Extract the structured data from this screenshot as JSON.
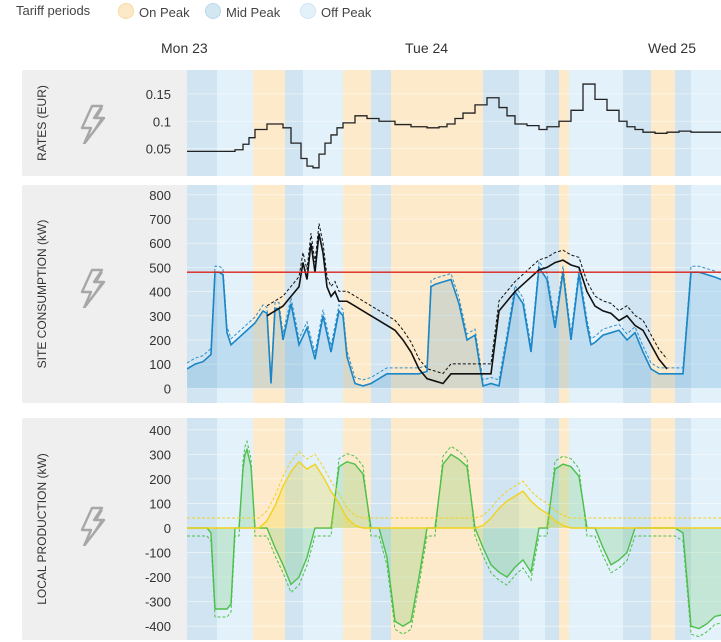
{
  "legend": {
    "title": "Tariff periods",
    "items": [
      {
        "label": "On Peak",
        "color": "#fde9c7"
      },
      {
        "label": "Mid Peak",
        "color": "#d3e7f3"
      },
      {
        "label": "Off Peak",
        "color": "#e3f1fb"
      }
    ]
  },
  "days": [
    "Mon 23",
    "Tue 24",
    "Wed 25"
  ],
  "colors": {
    "on_peak": "#fde9c7",
    "mid_peak": "#cfe3f0",
    "off_peak": "#e1f0fa",
    "rate_line": "#222222",
    "consumption_blue": "#1a86c7",
    "consumption_black": "#111111",
    "threshold": "#d9221c",
    "production_yellow": "#f2d21b",
    "production_green": "#4cc04a"
  },
  "icons": {
    "panel_icon": "bolt-icon"
  },
  "chart_data": [
    {
      "type": "line",
      "ylabel": "RATES (EUR)",
      "yticks": [
        0.05,
        0.1,
        0.15
      ],
      "ylim": [
        0.0,
        0.19
      ],
      "tariff_periods": [
        {
          "period": "Mid Peak",
          "start": 0.0,
          "end": 0.075
        },
        {
          "period": "Off Peak",
          "start": 0.075,
          "end": 0.165
        },
        {
          "period": "On Peak",
          "start": 0.165,
          "end": 0.245
        },
        {
          "period": "Mid Peak",
          "start": 0.245,
          "end": 0.29
        },
        {
          "period": "Off Peak",
          "start": 0.29,
          "end": 0.39
        },
        {
          "period": "On Peak",
          "start": 0.39,
          "end": 0.46
        },
        {
          "period": "Mid Peak",
          "start": 0.46,
          "end": 0.51
        },
        {
          "period": "On Peak",
          "start": 0.51,
          "end": 0.74
        },
        {
          "period": "Mid Peak",
          "start": 0.74,
          "end": 0.83
        },
        {
          "period": "Off Peak",
          "start": 0.83,
          "end": 0.895
        },
        {
          "period": "Mid Peak",
          "start": 0.895,
          "end": 0.93
        },
        {
          "period": "On Peak",
          "start": 0.93,
          "end": 0.955
        },
        {
          "period": "Off Peak",
          "start": 0.955,
          "end": 1.09
        },
        {
          "period": "Mid Peak",
          "start": 1.09,
          "end": 1.16
        },
        {
          "period": "On Peak",
          "start": 1.16,
          "end": 1.22
        },
        {
          "period": "Mid Peak",
          "start": 1.22,
          "end": 1.26
        },
        {
          "period": "Off Peak",
          "start": 1.26,
          "end": 1.35
        }
      ],
      "rates": {
        "x": [
          0.0,
          0.12,
          0.14,
          0.155,
          0.17,
          0.2,
          0.24,
          0.26,
          0.285,
          0.3,
          0.315,
          0.33,
          0.345,
          0.36,
          0.375,
          0.39,
          0.42,
          0.45,
          0.48,
          0.52,
          0.56,
          0.6,
          0.63,
          0.65,
          0.67,
          0.69,
          0.72,
          0.75,
          0.78,
          0.8,
          0.82,
          0.85,
          0.88,
          0.9,
          0.93,
          0.96,
          0.99,
          1.02,
          1.05,
          1.08,
          1.1,
          1.12,
          1.14,
          1.17,
          1.2,
          1.23,
          1.26,
          1.3,
          1.35
        ],
        "y": [
          0.045,
          0.048,
          0.058,
          0.07,
          0.085,
          0.095,
          0.088,
          0.06,
          0.032,
          0.018,
          0.015,
          0.04,
          0.06,
          0.075,
          0.088,
          0.097,
          0.11,
          0.105,
          0.1,
          0.094,
          0.09,
          0.088,
          0.09,
          0.095,
          0.105,
          0.115,
          0.13,
          0.143,
          0.125,
          0.11,
          0.095,
          0.092,
          0.085,
          0.09,
          0.1,
          0.12,
          0.168,
          0.14,
          0.12,
          0.1,
          0.09,
          0.085,
          0.08,
          0.078,
          0.08,
          0.082,
          0.08,
          0.08,
          0.08
        ]
      }
    },
    {
      "type": "area",
      "ylabel": "SITE CONSUMPTION (kW)",
      "yticks": [
        0,
        100,
        200,
        300,
        400,
        500,
        600,
        700,
        800
      ],
      "ylim": [
        -40,
        820
      ],
      "threshold": 480,
      "series": [
        {
          "x": [
            0.0,
            0.02,
            0.04,
            0.06,
            0.07,
            0.08,
            0.09,
            0.1,
            0.11,
            0.13,
            0.15,
            0.17,
            0.19,
            0.2,
            0.21,
            0.22,
            0.23,
            0.24,
            0.26,
            0.28,
            0.3,
            0.32,
            0.34,
            0.36,
            0.38,
            0.39,
            0.4,
            0.42,
            0.44,
            0.46,
            0.48,
            0.5,
            0.52,
            0.54,
            0.56,
            0.58,
            0.6,
            0.61,
            0.62,
            0.64,
            0.66,
            0.68,
            0.7,
            0.72,
            0.74,
            0.76,
            0.78,
            0.8,
            0.82,
            0.84,
            0.86,
            0.88,
            0.9,
            0.92,
            0.94,
            0.96,
            0.98,
            1.0,
            1.01,
            1.02,
            1.04,
            1.06,
            1.08,
            1.1,
            1.12,
            1.14,
            1.16,
            1.18,
            1.2,
            1.22,
            1.24,
            1.26,
            1.28,
            1.3,
            1.32,
            1.35
          ],
          "y": [
            80,
            100,
            110,
            140,
            480,
            480,
            470,
            230,
            180,
            210,
            240,
            270,
            320,
            310,
            20,
            330,
            330,
            200,
            350,
            180,
            250,
            120,
            300,
            150,
            320,
            300,
            130,
            20,
            10,
            20,
            40,
            60,
            60,
            60,
            60,
            60,
            70,
            420,
            430,
            440,
            450,
            350,
            200,
            220,
            10,
            20,
            10,
            200,
            400,
            350,
            150,
            500,
            450,
            250,
            480,
            200,
            470,
            260,
            180,
            190,
            220,
            230,
            240,
            200,
            230,
            150,
            80,
            60,
            60,
            60,
            60,
            480,
            480,
            470,
            460,
            440
          ]
        },
        {
          "x": [
            0.2,
            0.22,
            0.24,
            0.26,
            0.28,
            0.29,
            0.3,
            0.31,
            0.32,
            0.33,
            0.34,
            0.35,
            0.36,
            0.37,
            0.38,
            0.4,
            0.42,
            0.44,
            0.46,
            0.48,
            0.5,
            0.52,
            0.54,
            0.56,
            0.58,
            0.6,
            0.62,
            0.64,
            0.66,
            0.68,
            0.7,
            0.72,
            0.74,
            0.76,
            0.78,
            0.8,
            0.82,
            0.84,
            0.86,
            0.88,
            0.9,
            0.92,
            0.94,
            0.96,
            0.98,
            1.0,
            1.02,
            1.04,
            1.06,
            1.08,
            1.1,
            1.12,
            1.14,
            1.16,
            1.18,
            1.2
          ],
          "y": [
            300,
            320,
            340,
            380,
            420,
            520,
            450,
            600,
            480,
            640,
            560,
            420,
            380,
            400,
            360,
            360,
            340,
            320,
            300,
            280,
            260,
            240,
            200,
            150,
            80,
            40,
            30,
            20,
            60,
            60,
            60,
            60,
            60,
            60,
            320,
            360,
            400,
            430,
            460,
            490,
            500,
            520,
            530,
            510,
            500,
            400,
            340,
            320,
            310,
            280,
            300,
            260,
            240,
            180,
            120,
            80
          ]
        }
      ]
    },
    {
      "type": "area",
      "ylabel": "LOCAL PRODUCTION (kW)",
      "yticks": [
        -400,
        -300,
        -200,
        -100,
        0,
        100,
        200,
        300,
        400
      ],
      "ylim": [
        -440,
        440
      ],
      "series": [
        {
          "x": [
            0.0,
            0.05,
            0.1,
            0.12,
            0.14,
            0.16,
            0.18,
            0.2,
            0.22,
            0.24,
            0.26,
            0.28,
            0.3,
            0.32,
            0.34,
            0.36,
            0.38,
            0.4,
            0.42,
            0.44,
            0.5,
            0.55,
            0.6,
            0.65,
            0.7,
            0.72,
            0.74,
            0.76,
            0.78,
            0.8,
            0.82,
            0.84,
            0.86,
            0.88,
            0.9,
            0.92,
            0.94,
            0.96,
            0.98,
            1.0,
            1.05,
            1.1,
            1.15,
            1.2,
            1.25,
            1.3,
            1.35
          ],
          "y": [
            0,
            0,
            0,
            0,
            0,
            0,
            0,
            30,
            90,
            170,
            230,
            270,
            240,
            260,
            210,
            150,
            100,
            40,
            10,
            0,
            0,
            0,
            0,
            0,
            0,
            0,
            10,
            40,
            80,
            110,
            130,
            150,
            110,
            80,
            60,
            30,
            10,
            0,
            0,
            0,
            0,
            0,
            0,
            0,
            0,
            0,
            0
          ]
        },
        {
          "x": [
            0.0,
            0.03,
            0.05,
            0.06,
            0.07,
            0.1,
            0.11,
            0.12,
            0.13,
            0.14,
            0.145,
            0.15,
            0.16,
            0.17,
            0.2,
            0.22,
            0.24,
            0.26,
            0.28,
            0.3,
            0.32,
            0.34,
            0.36,
            0.38,
            0.4,
            0.42,
            0.44,
            0.46,
            0.48,
            0.5,
            0.52,
            0.54,
            0.56,
            0.58,
            0.6,
            0.62,
            0.64,
            0.66,
            0.68,
            0.7,
            0.72,
            0.74,
            0.76,
            0.78,
            0.8,
            0.82,
            0.84,
            0.86,
            0.88,
            0.9,
            0.92,
            0.94,
            0.96,
            0.98,
            1.0,
            1.02,
            1.04,
            1.06,
            1.08,
            1.1,
            1.12,
            1.14,
            1.16,
            1.18,
            1.2,
            1.22,
            1.24,
            1.26,
            1.28,
            1.3,
            1.32,
            1.35
          ],
          "y": [
            0,
            0,
            0,
            -20,
            -330,
            -330,
            -310,
            0,
            0,
            240,
            300,
            320,
            250,
            0,
            0,
            -80,
            -150,
            -230,
            -200,
            -120,
            0,
            0,
            0,
            250,
            270,
            260,
            220,
            0,
            0,
            -120,
            -380,
            -400,
            -380,
            -200,
            0,
            0,
            260,
            300,
            280,
            250,
            0,
            -80,
            -150,
            -180,
            -200,
            -160,
            -130,
            -180,
            0,
            0,
            240,
            260,
            250,
            210,
            0,
            0,
            -80,
            -150,
            -130,
            -100,
            0,
            0,
            0,
            0,
            0,
            0,
            -20,
            -400,
            -410,
            -390,
            -360,
            -350
          ]
        }
      ]
    }
  ]
}
